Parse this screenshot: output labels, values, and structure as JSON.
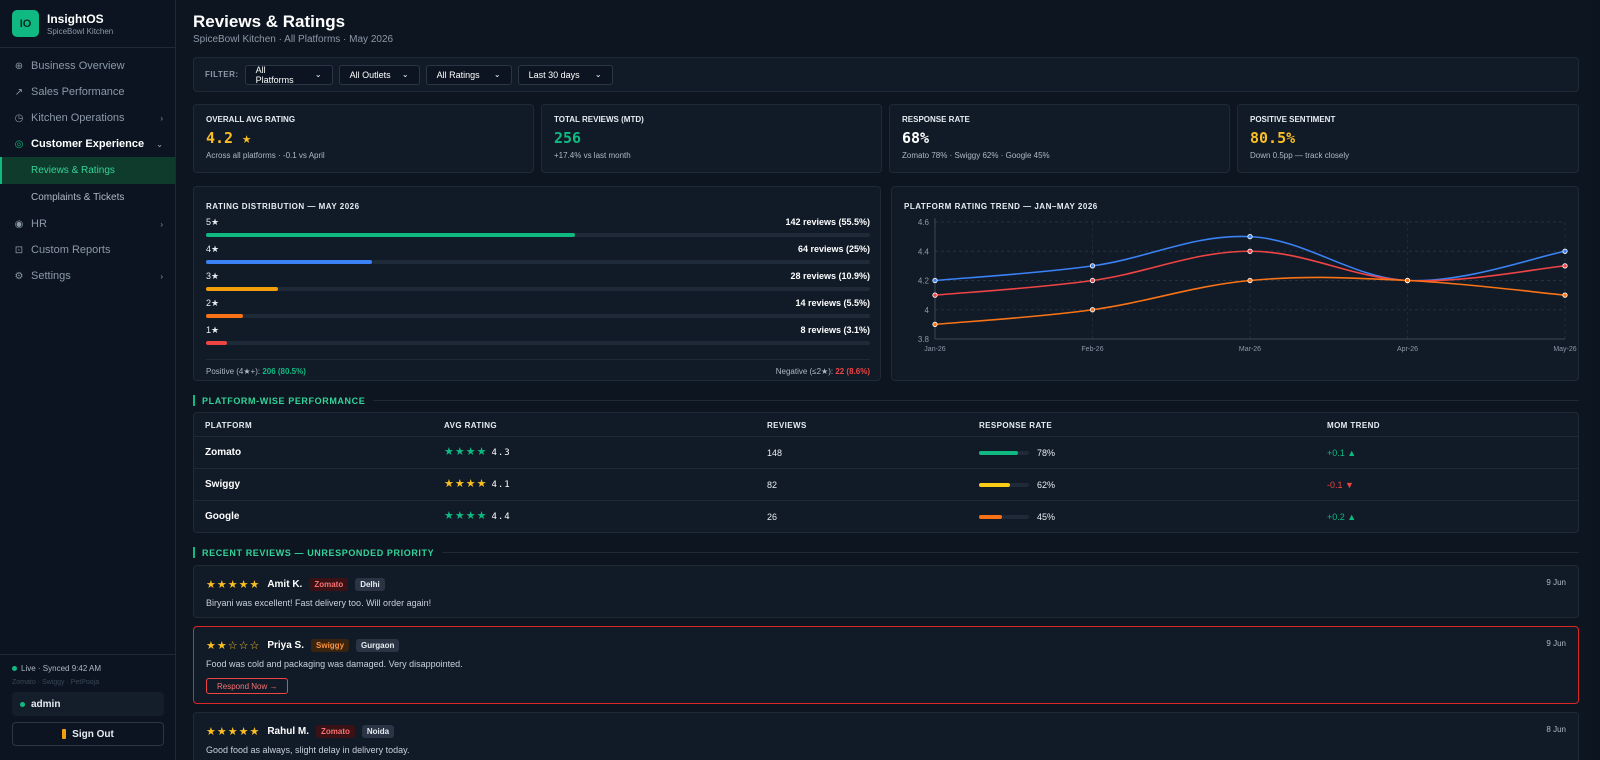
{
  "app": {
    "logo": "IO",
    "name": "InsightOS",
    "org": "SpiceBowl Kitchen"
  },
  "sidebar": {
    "items": [
      {
        "label": "Business Overview",
        "icon": "globe-icon"
      },
      {
        "label": "Sales Performance",
        "icon": "trend-arrow-icon"
      },
      {
        "label": "Kitchen Operations",
        "icon": "clock-icon"
      },
      {
        "label": "Customer Experience",
        "icon": "smile-icon"
      },
      {
        "label": "HR",
        "icon": "person-icon"
      },
      {
        "label": "Custom Reports",
        "icon": "report-icon"
      },
      {
        "label": "Settings",
        "icon": "gear-icon"
      }
    ],
    "subitems": [
      {
        "label": "Reviews & Ratings"
      },
      {
        "label": "Complaints & Tickets"
      }
    ],
    "live": "Live · Synced 9:42 AM",
    "platforms": "Zomato · Swiggy · PetPooja",
    "user": "admin",
    "signout": "Sign Out"
  },
  "header": {
    "title": "Reviews & Ratings",
    "subtitle": "SpiceBowl Kitchen · All Platforms · May 2026"
  },
  "filters": {
    "label": "FILTER:",
    "options": [
      "All Platforms",
      "All Outlets",
      "All Ratings",
      "Last 30 days"
    ]
  },
  "kpis": [
    {
      "label": "OVERALL AVG RATING",
      "value": "4.2 ★",
      "note": "Across all platforms · -0.1 vs April",
      "color": "#fbbf24"
    },
    {
      "label": "TOTAL REVIEWS (MTD)",
      "value": "256",
      "note": "+17.4% vs last month",
      "color": "#10b981"
    },
    {
      "label": "RESPONSE RATE",
      "value": "68%",
      "note": "Zomato 78% · Swiggy 62% · Google 45%",
      "color": "#ffffff"
    },
    {
      "label": "POSITIVE SENTIMENT",
      "value": "80.5%",
      "note": "Down 0.5pp — track closely",
      "color": "#fbbf24"
    }
  ],
  "distribution": {
    "title": "RATING DISTRIBUTION — MAY 2026",
    "rows": [
      {
        "star": "5★",
        "count": "142 reviews (55.5%)",
        "pct": 55.5,
        "color": "#10b981"
      },
      {
        "star": "4★",
        "count": "64 reviews (25%)",
        "pct": 25,
        "color": "#3b82f6"
      },
      {
        "star": "3★",
        "count": "28 reviews (10.9%)",
        "pct": 10.9,
        "color": "#f59e0b"
      },
      {
        "star": "2★",
        "count": "14 reviews (5.5%)",
        "pct": 5.5,
        "color": "#f97316"
      },
      {
        "star": "1★",
        "count": "8 reviews (3.1%)",
        "pct": 3.1,
        "color": "#ef4444"
      }
    ],
    "positive_label": "Positive (4★+):",
    "positive_value": "206 (80.5%)",
    "negative_label": "Negative (≤2★):",
    "negative_value": "22 (8.6%)"
  },
  "chart_data": {
    "type": "line",
    "title": "PLATFORM RATING TREND — JAN–MAY 2026",
    "categories": [
      "Jan-26",
      "Feb-26",
      "Mar-26",
      "Apr-26",
      "May-26"
    ],
    "ylim": [
      3.8,
      4.6
    ],
    "yticks": [
      "3.8",
      "4",
      "4.2",
      "4.4",
      "4.6"
    ],
    "grid": true,
    "series": [
      {
        "color": "#3b82f6",
        "values": [
          4.2,
          4.3,
          4.5,
          4.2,
          4.4
        ]
      },
      {
        "color": "#ef4444",
        "values": [
          4.1,
          4.2,
          4.4,
          4.2,
          4.3
        ]
      },
      {
        "color": "#f97316",
        "values": [
          3.9,
          4.0,
          4.2,
          4.2,
          4.1
        ]
      }
    ]
  },
  "platform_section": {
    "title": "PLATFORM-WISE PERFORMANCE"
  },
  "platform_table": {
    "headers": [
      "PLATFORM",
      "AVG RATING",
      "REVIEWS",
      "RESPONSE RATE",
      "MOM TREND"
    ],
    "rows": [
      {
        "platform": "Zomato",
        "stars": "★★★★",
        "rating": "4.3",
        "reviews": "148",
        "response": "78%",
        "response_pct": 78,
        "bar_color": "#10b981",
        "trend": "+0.1 ▲",
        "trend_color": "#10b981",
        "star_color": "#10b981"
      },
      {
        "platform": "Swiggy",
        "stars": "★★★★",
        "rating": "4.1",
        "reviews": "82",
        "response": "62%",
        "response_pct": 62,
        "bar_color": "#facc15",
        "trend": "-0.1 ▼",
        "trend_color": "#ef4444",
        "star_color": "#fbbf24"
      },
      {
        "platform": "Google",
        "stars": "★★★★",
        "rating": "4.4",
        "reviews": "26",
        "response": "45%",
        "response_pct": 45,
        "bar_color": "#f97316",
        "trend": "+0.2 ▲",
        "trend_color": "#10b981",
        "star_color": "#10b981"
      }
    ]
  },
  "reviews_section": {
    "title": "RECENT REVIEWS — UNRESPONDED PRIORITY"
  },
  "reviews": [
    {
      "stars": "★★★★★",
      "name": "Amit K.",
      "platform": "Zomato",
      "location": "Delhi",
      "date": "9 Jun",
      "text": "Biryani was excellent! Fast delivery too. Will order again!"
    },
    {
      "stars": "★★☆☆☆",
      "name": "Priya S.",
      "platform": "Swiggy",
      "location": "Gurgaon",
      "date": "9 Jun",
      "text": "Food was cold and packaging was damaged. Very disappointed.",
      "action": "Respond Now →"
    },
    {
      "stars": "★★★★★",
      "name": "Rahul M.",
      "platform": "Zomato",
      "location": "Noida",
      "date": "8 Jun",
      "text": "Good food as always, slight delay in delivery today."
    }
  ]
}
